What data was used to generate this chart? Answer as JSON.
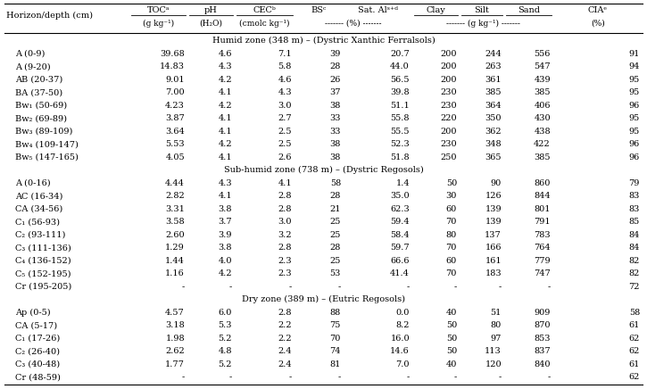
{
  "col_headers_line1": [
    "Horizon/depth (cm)",
    "TOCᵃ",
    "pH",
    "CECᵇ",
    "BSᶜ",
    "Sat. Alˢ⁺ᵈ",
    "Clay",
    "Silt",
    "Sand",
    "CIAᵉ"
  ],
  "section1_title": "Humid zone (348 m) – (Dystric Xanthic Ferralsols)",
  "section2_title": "Sub-humid zone (738 m) – (Dystric Regosols)",
  "section3_title": "Dry zone (389 m) – (Eutric Regosols)",
  "rows": [
    [
      "A (0-9)",
      "39.68",
      "4.6",
      "7.1",
      "39",
      "20.7",
      "200",
      "244",
      "556",
      "91"
    ],
    [
      "A (9-20)",
      "14.83",
      "4.3",
      "5.8",
      "28",
      "44.0",
      "200",
      "263",
      "547",
      "94"
    ],
    [
      "AB (20-37)",
      "9.01",
      "4.2",
      "4.6",
      "26",
      "56.5",
      "200",
      "361",
      "439",
      "95"
    ],
    [
      "BA (37-50)",
      "7.00",
      "4.1",
      "4.3",
      "37",
      "39.8",
      "230",
      "385",
      "385",
      "95"
    ],
    [
      "Bw₁ (50-69)",
      "4.23",
      "4.2",
      "3.0",
      "38",
      "51.1",
      "230",
      "364",
      "406",
      "96"
    ],
    [
      "Bw₂ (69-89)",
      "3.87",
      "4.1",
      "2.7",
      "33",
      "55.8",
      "220",
      "350",
      "430",
      "95"
    ],
    [
      "Bw₃ (89-109)",
      "3.64",
      "4.1",
      "2.5",
      "33",
      "55.5",
      "200",
      "362",
      "438",
      "95"
    ],
    [
      "Bw₄ (109-147)",
      "5.53",
      "4.2",
      "2.5",
      "38",
      "52.3",
      "230",
      "348",
      "422",
      "96"
    ],
    [
      "Bw₅ (147-165)",
      "4.05",
      "4.1",
      "2.6",
      "38",
      "51.8",
      "250",
      "365",
      "385",
      "96"
    ],
    [
      "A (0-16)",
      "4.44",
      "4.3",
      "4.1",
      "58",
      "1.4",
      "50",
      "90",
      "860",
      "79"
    ],
    [
      "AC (16-34)",
      "2.82",
      "4.1",
      "2.8",
      "28",
      "35.0",
      "30",
      "126",
      "844",
      "83"
    ],
    [
      "CA (34-56)",
      "3.31",
      "3.8",
      "2.8",
      "21",
      "62.3",
      "60",
      "139",
      "801",
      "83"
    ],
    [
      "C₁ (56-93)",
      "3.58",
      "3.7",
      "3.0",
      "25",
      "59.4",
      "70",
      "139",
      "791",
      "85"
    ],
    [
      "C₂ (93-111)",
      "2.60",
      "3.9",
      "3.2",
      "25",
      "58.4",
      "80",
      "137",
      "783",
      "84"
    ],
    [
      "C₃ (111-136)",
      "1.29",
      "3.8",
      "2.8",
      "28",
      "59.7",
      "70",
      "166",
      "764",
      "84"
    ],
    [
      "C₄ (136-152)",
      "1.44",
      "4.0",
      "2.3",
      "25",
      "66.6",
      "60",
      "161",
      "779",
      "82"
    ],
    [
      "C₅ (152-195)",
      "1.16",
      "4.2",
      "2.3",
      "53",
      "41.4",
      "70",
      "183",
      "747",
      "82"
    ],
    [
      "Cr (195-205)",
      "-",
      "-",
      "-",
      "-",
      "-",
      "-",
      "-",
      "-",
      "72"
    ],
    [
      "Ap (0-5)",
      "4.57",
      "6.0",
      "2.8",
      "88",
      "0.0",
      "40",
      "51",
      "909",
      "58"
    ],
    [
      "CA (5-17)",
      "3.18",
      "5.3",
      "2.2",
      "75",
      "8.2",
      "50",
      "80",
      "870",
      "61"
    ],
    [
      "C₁ (17-26)",
      "1.98",
      "5.2",
      "2.2",
      "70",
      "16.0",
      "50",
      "97",
      "853",
      "62"
    ],
    [
      "C₂ (26-40)",
      "2.62",
      "4.8",
      "2.4",
      "74",
      "14.6",
      "50",
      "113",
      "837",
      "62"
    ],
    [
      "C₃ (40-48)",
      "1.77",
      "5.2",
      "2.4",
      "81",
      "7.0",
      "40",
      "120",
      "840",
      "61"
    ],
    [
      "Cr (48-59)",
      "-",
      "-",
      "-",
      "-",
      "-",
      "-",
      "-",
      "-",
      "62"
    ]
  ],
  "background_color": "#ffffff",
  "text_color": "#000000",
  "font_size": 7.0,
  "font_size_small": 6.5,
  "font_size_section": 7.0
}
